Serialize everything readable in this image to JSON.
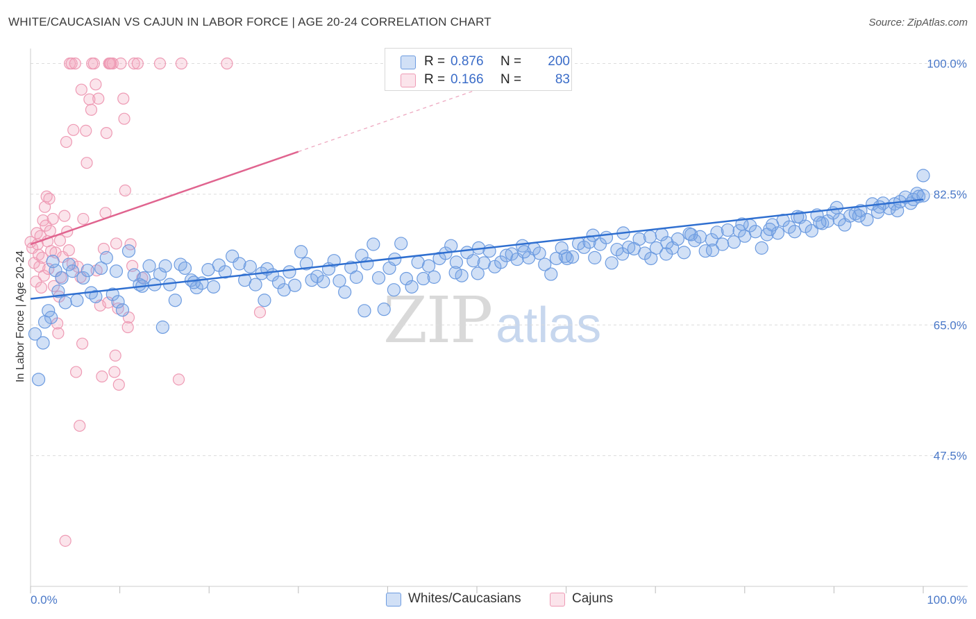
{
  "title": "WHITE/CAUCASIAN VS CAJUN IN LABOR FORCE | AGE 20-24 CORRELATION CHART",
  "source": "Source: ZipAtlas.com",
  "watermark": {
    "zip": "ZIP",
    "atlas": "atlas"
  },
  "legend_top": {
    "rows": [
      {
        "r_label": "R =",
        "r_value": "0.876",
        "n_label": "N =",
        "n_value": "200",
        "color": "#7aa6e6"
      },
      {
        "r_label": "R =",
        "r_value": "0.166",
        "n_label": "N =",
        "n_value": "83",
        "color": "#f2a5bd"
      }
    ]
  },
  "legend_bottom": [
    {
      "label": "Whites/Caucasians",
      "color": "#7aa6e6"
    },
    {
      "label": "Cajuns",
      "color": "#f2a5bd"
    }
  ],
  "colors": {
    "blue_fill": "rgba(122,166,230,0.35)",
    "blue_stroke": "#6c9be0",
    "blue_line": "#2f6fd0",
    "pink_fill": "rgba(242,165,189,0.30)",
    "pink_stroke": "#ee9ab4",
    "pink_line": "#e0648f",
    "tick_text": "#4a78c8",
    "grid": "#dcdcdc"
  },
  "chart_data": {
    "type": "scatter",
    "title": "WHITE/CAUCASIAN VS CAJUN IN LABOR FORCE | AGE 20-24 CORRELATION CHART",
    "xlabel": "",
    "ylabel": "In Labor Force | Age 20-24",
    "xlim": [
      0,
      100
    ],
    "ylim": [
      30,
      102
    ],
    "x_tick_labels": [
      "0.0%",
      "100.0%"
    ],
    "y_ticks": [
      47.5,
      65.0,
      82.5,
      100.0
    ],
    "y_tick_labels": [
      "47.5%",
      "65.0%",
      "82.5%",
      "100.0%"
    ],
    "grid": true,
    "legend_position": "top-center",
    "series": [
      {
        "name": "Whites/Caucasians",
        "trend": {
          "x": [
            0,
            100
          ],
          "y": [
            68.5,
            81.8
          ]
        },
        "points": [
          [
            0.5,
            63.8
          ],
          [
            0.9,
            57.7
          ],
          [
            1.4,
            62.6
          ],
          [
            2.0,
            66.9
          ],
          [
            2.3,
            66.0
          ],
          [
            2.8,
            72.3
          ],
          [
            3.1,
            69.5
          ],
          [
            3.5,
            71.3
          ],
          [
            3.9,
            68.0
          ],
          [
            4.3,
            73.1
          ],
          [
            4.7,
            72.2
          ],
          [
            5.2,
            68.3
          ],
          [
            5.9,
            71.3
          ],
          [
            6.4,
            72.3
          ],
          [
            6.8,
            69.3
          ],
          [
            7.3,
            68.8
          ],
          [
            7.9,
            72.6
          ],
          [
            8.5,
            74.0
          ],
          [
            9.2,
            69.1
          ],
          [
            9.8,
            68.1
          ],
          [
            10.3,
            67.0
          ],
          [
            11.0,
            74.9
          ],
          [
            11.6,
            71.7
          ],
          [
            12.2,
            70.4
          ],
          [
            12.7,
            71.3
          ],
          [
            13.3,
            72.9
          ],
          [
            13.9,
            70.4
          ],
          [
            14.5,
            71.8
          ],
          [
            15.1,
            72.9
          ],
          [
            15.6,
            70.4
          ],
          [
            16.2,
            68.3
          ],
          [
            16.8,
            73.1
          ],
          [
            17.3,
            72.6
          ],
          [
            18.0,
            71.0
          ],
          [
            18.6,
            70.0
          ],
          [
            19.2,
            70.6
          ],
          [
            19.9,
            72.4
          ],
          [
            20.5,
            70.1
          ],
          [
            21.1,
            73.0
          ],
          [
            21.8,
            72.1
          ],
          [
            22.6,
            74.2
          ],
          [
            23.4,
            73.2
          ],
          [
            24.0,
            71.0
          ],
          [
            24.6,
            72.8
          ],
          [
            25.2,
            70.4
          ],
          [
            25.9,
            71.9
          ],
          [
            26.5,
            72.5
          ],
          [
            27.1,
            71.7
          ],
          [
            27.8,
            70.7
          ],
          [
            28.4,
            69.7
          ],
          [
            29.0,
            72.1
          ],
          [
            29.6,
            70.3
          ],
          [
            30.3,
            74.8
          ],
          [
            30.9,
            73.2
          ],
          [
            31.5,
            71.0
          ],
          [
            32.1,
            71.5
          ],
          [
            32.8,
            70.8
          ],
          [
            33.4,
            72.5
          ],
          [
            34.0,
            73.6
          ],
          [
            34.6,
            70.9
          ],
          [
            35.2,
            69.4
          ],
          [
            35.9,
            72.7
          ],
          [
            36.5,
            71.4
          ],
          [
            37.1,
            74.3
          ],
          [
            37.7,
            73.2
          ],
          [
            38.4,
            75.8
          ],
          [
            39.0,
            71.3
          ],
          [
            39.6,
            67.1
          ],
          [
            40.2,
            72.6
          ],
          [
            40.8,
            73.8
          ],
          [
            41.5,
            75.9
          ],
          [
            42.1,
            71.2
          ],
          [
            42.7,
            70.1
          ],
          [
            43.4,
            73.4
          ],
          [
            44.0,
            71.2
          ],
          [
            44.6,
            72.9
          ],
          [
            45.2,
            71.4
          ],
          [
            45.8,
            73.9
          ],
          [
            46.5,
            74.6
          ],
          [
            47.1,
            75.6
          ],
          [
            47.7,
            73.4
          ],
          [
            48.3,
            71.6
          ],
          [
            48.9,
            74.7
          ],
          [
            49.6,
            73.6
          ],
          [
            50.2,
            75.3
          ],
          [
            50.8,
            73.3
          ],
          [
            51.4,
            74.9
          ],
          [
            52.0,
            72.8
          ],
          [
            52.7,
            73.4
          ],
          [
            53.3,
            74.3
          ],
          [
            53.9,
            74.5
          ],
          [
            54.5,
            73.8
          ],
          [
            55.1,
            75.6
          ],
          [
            55.8,
            74.0
          ],
          [
            56.4,
            75.2
          ],
          [
            57.0,
            74.6
          ],
          [
            57.6,
            73.1
          ],
          [
            58.3,
            71.8
          ],
          [
            58.9,
            73.9
          ],
          [
            59.5,
            75.3
          ],
          [
            60.1,
            73.9
          ],
          [
            60.7,
            74.1
          ],
          [
            61.4,
            75.9
          ],
          [
            62.0,
            75.4
          ],
          [
            62.6,
            76.1
          ],
          [
            63.2,
            74.0
          ],
          [
            63.8,
            75.8
          ],
          [
            64.5,
            76.7
          ],
          [
            65.1,
            73.3
          ],
          [
            65.7,
            75.1
          ],
          [
            66.3,
            74.5
          ],
          [
            67.0,
            75.4
          ],
          [
            67.6,
            75.2
          ],
          [
            68.2,
            76.5
          ],
          [
            68.8,
            74.6
          ],
          [
            69.4,
            76.8
          ],
          [
            70.1,
            75.3
          ],
          [
            70.7,
            77.1
          ],
          [
            71.3,
            76.0
          ],
          [
            71.9,
            75.3
          ],
          [
            72.5,
            76.5
          ],
          [
            73.2,
            74.7
          ],
          [
            73.8,
            77.2
          ],
          [
            74.4,
            76.3
          ],
          [
            75.0,
            76.8
          ],
          [
            75.6,
            74.9
          ],
          [
            76.3,
            76.4
          ],
          [
            76.9,
            77.4
          ],
          [
            77.5,
            75.8
          ],
          [
            78.1,
            77.7
          ],
          [
            78.8,
            76.1
          ],
          [
            79.4,
            77.6
          ],
          [
            80.0,
            76.9
          ],
          [
            80.6,
            78.3
          ],
          [
            81.2,
            77.5
          ],
          [
            81.9,
            75.3
          ],
          [
            82.5,
            77.1
          ],
          [
            83.1,
            78.4
          ],
          [
            83.7,
            77.3
          ],
          [
            84.3,
            79.0
          ],
          [
            85.0,
            78.1
          ],
          [
            85.6,
            77.5
          ],
          [
            86.2,
            79.4
          ],
          [
            86.8,
            78.2
          ],
          [
            87.5,
            77.6
          ],
          [
            88.1,
            79.7
          ],
          [
            88.7,
            78.6
          ],
          [
            89.3,
            78.9
          ],
          [
            89.9,
            80.0
          ],
          [
            90.6,
            79.1
          ],
          [
            91.2,
            78.4
          ],
          [
            91.8,
            79.6
          ],
          [
            92.4,
            79.9
          ],
          [
            93.0,
            80.3
          ],
          [
            93.7,
            79.1
          ],
          [
            94.3,
            81.2
          ],
          [
            94.9,
            80.1
          ],
          [
            95.5,
            81.3
          ],
          [
            96.2,
            80.6
          ],
          [
            96.8,
            81.2
          ],
          [
            97.4,
            81.5
          ],
          [
            98.0,
            82.1
          ],
          [
            98.6,
            81.3
          ],
          [
            99.3,
            82.6
          ],
          [
            100.0,
            85.0
          ],
          [
            1.6,
            65.4
          ],
          [
            2.5,
            73.5
          ],
          [
            9.6,
            72.2
          ],
          [
            12.5,
            70.2
          ],
          [
            14.8,
            64.7
          ],
          [
            18.3,
            70.7
          ],
          [
            26.2,
            68.3
          ],
          [
            37.4,
            66.9
          ],
          [
            40.7,
            69.7
          ],
          [
            47.6,
            72.0
          ],
          [
            50.1,
            71.9
          ],
          [
            55.3,
            74.8
          ],
          [
            59.9,
            74.2
          ],
          [
            63.0,
            77.0
          ],
          [
            66.4,
            77.3
          ],
          [
            69.5,
            73.9
          ],
          [
            71.2,
            74.5
          ],
          [
            74.0,
            77.1
          ],
          [
            76.4,
            75.0
          ],
          [
            79.7,
            78.5
          ],
          [
            82.8,
            77.8
          ],
          [
            85.9,
            79.5
          ],
          [
            88.4,
            78.7
          ],
          [
            90.3,
            80.7
          ],
          [
            92.8,
            79.6
          ],
          [
            95.1,
            80.8
          ],
          [
            97.1,
            80.3
          ],
          [
            98.9,
            81.8
          ],
          [
            99.5,
            82.2
          ],
          [
            100.0,
            82.3
          ]
        ]
      },
      {
        "name": "Cajuns",
        "trend": {
          "x": [
            0,
            30
          ],
          "y": [
            75.8,
            88.2
          ]
        },
        "trend_extension": {
          "x": [
            30,
            100
          ],
          "y": [
            88.2,
            117.2
          ]
        },
        "points": [
          [
            0.0,
            76.1
          ],
          [
            0.2,
            75.3
          ],
          [
            0.4,
            73.3
          ],
          [
            0.6,
            70.8
          ],
          [
            0.7,
            77.3
          ],
          [
            0.8,
            75.8
          ],
          [
            0.9,
            74.4
          ],
          [
            1.0,
            72.8
          ],
          [
            1.1,
            76.9
          ],
          [
            1.2,
            70.0
          ],
          [
            1.3,
            74.0
          ],
          [
            1.4,
            79.0
          ],
          [
            1.5,
            71.6
          ],
          [
            1.6,
            80.8
          ],
          [
            1.7,
            78.3
          ],
          [
            1.8,
            82.2
          ],
          [
            1.9,
            76.2
          ],
          [
            2.0,
            72.5
          ],
          [
            2.1,
            81.9
          ],
          [
            2.2,
            77.6
          ],
          [
            2.3,
            74.9
          ],
          [
            2.5,
            79.2
          ],
          [
            2.6,
            70.2
          ],
          [
            2.8,
            74.7
          ],
          [
            3.0,
            65.2
          ],
          [
            3.1,
            63.9
          ],
          [
            3.2,
            68.8
          ],
          [
            3.3,
            76.3
          ],
          [
            3.4,
            71.4
          ],
          [
            3.6,
            74.1
          ],
          [
            3.8,
            79.6
          ],
          [
            3.9,
            36.1
          ],
          [
            4.0,
            89.5
          ],
          [
            4.1,
            77.5
          ],
          [
            4.3,
            75.0
          ],
          [
            4.4,
            100.0
          ],
          [
            4.6,
            100.0
          ],
          [
            4.7,
            73.2
          ],
          [
            4.8,
            91.1
          ],
          [
            5.0,
            100.0
          ],
          [
            5.1,
            58.7
          ],
          [
            5.3,
            72.8
          ],
          [
            5.5,
            51.5
          ],
          [
            5.6,
            71.4
          ],
          [
            5.7,
            96.5
          ],
          [
            5.8,
            62.5
          ],
          [
            5.9,
            79.2
          ],
          [
            6.2,
            91.0
          ],
          [
            6.3,
            86.7
          ],
          [
            6.6,
            95.2
          ],
          [
            6.8,
            93.8
          ],
          [
            6.9,
            100.0
          ],
          [
            7.1,
            100.0
          ],
          [
            7.3,
            97.2
          ],
          [
            7.4,
            72.3
          ],
          [
            7.6,
            95.3
          ],
          [
            7.8,
            67.6
          ],
          [
            8.0,
            58.1
          ],
          [
            8.2,
            75.2
          ],
          [
            8.4,
            80.0
          ],
          [
            8.5,
            90.7
          ],
          [
            8.7,
            68.0
          ],
          [
            8.8,
            100.0
          ],
          [
            8.9,
            100.0
          ],
          [
            9.0,
            100.0
          ],
          [
            9.2,
            100.0
          ],
          [
            9.4,
            58.7
          ],
          [
            9.5,
            60.9
          ],
          [
            9.6,
            75.9
          ],
          [
            9.8,
            67.2
          ],
          [
            9.9,
            57.0
          ],
          [
            10.1,
            100.0
          ],
          [
            10.4,
            95.3
          ],
          [
            10.5,
            92.6
          ],
          [
            10.6,
            83.0
          ],
          [
            10.9,
            64.7
          ],
          [
            11.0,
            66.0
          ],
          [
            11.2,
            75.8
          ],
          [
            11.4,
            72.9
          ],
          [
            11.6,
            100.0
          ],
          [
            12.0,
            100.0
          ],
          [
            12.5,
            71.3
          ],
          [
            14.5,
            100.0
          ],
          [
            16.6,
            57.7
          ],
          [
            16.9,
            100.0
          ],
          [
            22.0,
            100.0
          ],
          [
            25.7,
            66.7
          ]
        ]
      }
    ]
  }
}
